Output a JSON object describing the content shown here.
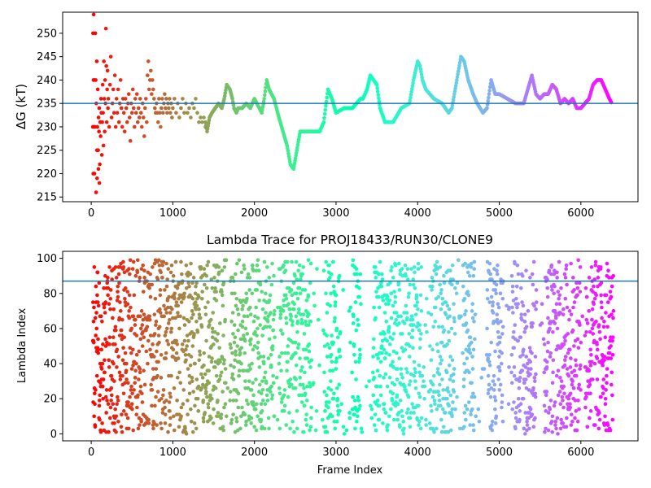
{
  "chart_data": [
    {
      "type": "scatter",
      "title": "",
      "xlabel": "",
      "ylabel": "ΔG (kT)",
      "xlim": [
        -350,
        6700
      ],
      "ylim": [
        214,
        254.5
      ],
      "xticks": [
        0,
        1000,
        2000,
        3000,
        4000,
        5000,
        6000
      ],
      "yticks": [
        215,
        220,
        225,
        230,
        235,
        240,
        245,
        250
      ],
      "hline": 235,
      "hline_color": "#1f77b4",
      "colormap": "rainbow (reversed along frame index)",
      "scatter_points": [
        [
          20,
          230
        ],
        [
          22,
          250
        ],
        [
          25,
          220
        ],
        [
          28,
          240
        ],
        [
          30,
          254
        ],
        [
          35,
          230
        ],
        [
          38,
          240
        ],
        [
          40,
          220
        ],
        [
          45,
          230
        ],
        [
          50,
          250
        ],
        [
          55,
          240
        ],
        [
          60,
          216
        ],
        [
          62,
          235
        ],
        [
          68,
          244
        ],
        [
          70,
          225
        ],
        [
          72,
          219
        ],
        [
          75,
          230
        ],
        [
          80,
          238
        ],
        [
          85,
          225
        ],
        [
          88,
          221
        ],
        [
          90,
          232
        ],
        [
          95,
          229
        ],
        [
          98,
          234
        ],
        [
          100,
          218
        ],
        [
          105,
          222
        ],
        [
          110,
          231
        ],
        [
          115,
          228
        ],
        [
          120,
          236
        ],
        [
          125,
          233
        ],
        [
          130,
          224
        ],
        [
          135,
          231
        ],
        [
          140,
          239
        ],
        [
          145,
          233
        ],
        [
          150,
          226
        ],
        [
          155,
          244
        ],
        [
          160,
          236
        ],
        [
          165,
          229
        ],
        [
          170,
          240
        ],
        [
          175,
          235
        ],
        [
          180,
          251
        ],
        [
          185,
          243
        ],
        [
          190,
          231
        ],
        [
          195,
          238
        ],
        [
          200,
          242
        ],
        [
          205,
          234
        ],
        [
          210,
          236
        ],
        [
          220,
          230
        ],
        [
          230,
          239
        ],
        [
          240,
          245
        ],
        [
          250,
          232
        ],
        [
          260,
          235
        ],
        [
          270,
          238
        ],
        [
          280,
          233
        ],
        [
          290,
          241
        ],
        [
          300,
          230
        ],
        [
          310,
          236
        ],
        [
          320,
          233
        ],
        [
          330,
          238
        ],
        [
          340,
          231
        ],
        [
          350,
          235
        ],
        [
          360,
          240
        ],
        [
          370,
          234
        ],
        [
          380,
          230
        ],
        [
          390,
          236
        ],
        [
          400,
          233
        ],
        [
          410,
          229
        ],
        [
          420,
          236
        ],
        [
          430,
          234
        ],
        [
          440,
          231
        ],
        [
          450,
          235
        ],
        [
          460,
          237
        ],
        [
          470,
          232
        ],
        [
          480,
          227
        ],
        [
          490,
          235
        ],
        [
          500,
          233
        ],
        [
          510,
          238
        ],
        [
          520,
          234
        ],
        [
          530,
          230
        ],
        [
          540,
          236
        ],
        [
          550,
          233
        ],
        [
          560,
          237
        ],
        [
          570,
          231
        ],
        [
          580,
          234
        ],
        [
          590,
          232
        ],
        [
          600,
          236
        ],
        [
          610,
          233
        ],
        [
          620,
          230
        ],
        [
          630,
          235
        ],
        [
          640,
          232
        ],
        [
          650,
          228
        ],
        [
          660,
          234
        ],
        [
          670,
          236
        ],
        [
          680,
          231
        ],
        [
          690,
          241
        ],
        [
          700,
          244
        ],
        [
          710,
          238
        ],
        [
          720,
          240
        ],
        [
          730,
          242
        ],
        [
          740,
          237
        ],
        [
          750,
          240
        ],
        [
          760,
          238
        ],
        [
          770,
          236
        ],
        [
          780,
          234
        ],
        [
          790,
          233
        ],
        [
          800,
          235
        ],
        [
          810,
          233
        ],
        [
          820,
          231
        ],
        [
          830,
          236
        ],
        [
          840,
          233
        ],
        [
          850,
          230
        ],
        [
          860,
          234
        ],
        [
          870,
          236
        ],
        [
          880,
          233
        ],
        [
          890,
          235
        ],
        [
          900,
          237
        ],
        [
          910,
          234
        ],
        [
          920,
          236
        ],
        [
          930,
          233
        ],
        [
          940,
          235
        ],
        [
          950,
          234
        ],
        [
          960,
          236
        ],
        [
          970,
          233
        ],
        [
          980,
          235
        ],
        [
          990,
          232
        ],
        [
          1000,
          234
        ],
        [
          1020,
          236
        ],
        [
          1040,
          233
        ],
        [
          1060,
          235
        ],
        [
          1080,
          232
        ],
        [
          1100,
          234
        ],
        [
          1120,
          236
        ],
        [
          1140,
          233
        ],
        [
          1160,
          235
        ],
        [
          1180,
          233
        ],
        [
          1200,
          234
        ],
        [
          1220,
          232
        ],
        [
          1240,
          235
        ],
        [
          1260,
          234
        ],
        [
          1280,
          236
        ],
        [
          1300,
          233
        ],
        [
          1320,
          231
        ],
        [
          1340,
          232
        ],
        [
          1360,
          231
        ],
        [
          1380,
          232
        ],
        [
          1400,
          230
        ]
      ],
      "trace_points": [
        [
          1400,
          231
        ],
        [
          1420,
          229
        ],
        [
          1450,
          232
        ],
        [
          1480,
          233
        ],
        [
          1520,
          234
        ],
        [
          1560,
          235
        ],
        [
          1600,
          234
        ],
        [
          1630,
          236
        ],
        [
          1660,
          239
        ],
        [
          1700,
          238
        ],
        [
          1730,
          236
        ],
        [
          1750,
          234
        ],
        [
          1780,
          233
        ],
        [
          1800,
          234
        ],
        [
          1850,
          234
        ],
        [
          1900,
          235
        ],
        [
          1950,
          234
        ],
        [
          2000,
          236
        ],
        [
          2030,
          235
        ],
        [
          2060,
          234
        ],
        [
          2090,
          233
        ],
        [
          2120,
          236
        ],
        [
          2150,
          240
        ],
        [
          2180,
          238
        ],
        [
          2210,
          237
        ],
        [
          2240,
          236
        ],
        [
          2270,
          234
        ],
        [
          2300,
          232
        ],
        [
          2350,
          229
        ],
        [
          2400,
          226
        ],
        [
          2440,
          222
        ],
        [
          2480,
          221
        ],
        [
          2520,
          225
        ],
        [
          2560,
          229
        ],
        [
          2600,
          229
        ],
        [
          2700,
          229
        ],
        [
          2800,
          229
        ],
        [
          2850,
          231
        ],
        [
          2900,
          238
        ],
        [
          2950,
          236
        ],
        [
          3000,
          233
        ],
        [
          3100,
          234
        ],
        [
          3200,
          234
        ],
        [
          3300,
          236
        ],
        [
          3330,
          236
        ],
        [
          3380,
          238
        ],
        [
          3420,
          241
        ],
        [
          3460,
          240
        ],
        [
          3500,
          239
        ],
        [
          3540,
          234
        ],
        [
          3600,
          231
        ],
        [
          3700,
          231
        ],
        [
          3800,
          234
        ],
        [
          3900,
          235
        ],
        [
          3950,
          240
        ],
        [
          4000,
          244
        ],
        [
          4030,
          243
        ],
        [
          4060,
          240
        ],
        [
          4100,
          238
        ],
        [
          4200,
          236
        ],
        [
          4300,
          235
        ],
        [
          4380,
          233
        ],
        [
          4420,
          234
        ],
        [
          4480,
          240
        ],
        [
          4530,
          245
        ],
        [
          4570,
          244
        ],
        [
          4620,
          240
        ],
        [
          4680,
          237
        ],
        [
          4730,
          235
        ],
        [
          4800,
          233
        ],
        [
          4850,
          234
        ],
        [
          4900,
          240
        ],
        [
          4950,
          237
        ],
        [
          5000,
          237
        ],
        [
          5100,
          236
        ],
        [
          5200,
          235
        ],
        [
          5300,
          235
        ],
        [
          5350,
          238
        ],
        [
          5400,
          241
        ],
        [
          5450,
          237
        ],
        [
          5500,
          236
        ],
        [
          5550,
          237
        ],
        [
          5600,
          237
        ],
        [
          5650,
          239
        ],
        [
          5700,
          238
        ],
        [
          5750,
          235
        ],
        [
          5800,
          236
        ],
        [
          5850,
          235
        ],
        [
          5900,
          236
        ],
        [
          5950,
          234
        ],
        [
          6000,
          234
        ],
        [
          6050,
          235
        ],
        [
          6100,
          236
        ],
        [
          6150,
          239
        ],
        [
          6200,
          240
        ],
        [
          6250,
          240
        ],
        [
          6300,
          238
        ],
        [
          6350,
          236
        ],
        [
          6380,
          235
        ]
      ]
    },
    {
      "type": "scatter",
      "title": "Lambda Trace for PROJ18433/RUN30/CLONE9",
      "xlabel": "Frame Index",
      "ylabel": "Lambda Index",
      "xlim": [
        -350,
        6700
      ],
      "ylim": [
        -4,
        104
      ],
      "xticks": [
        0,
        1000,
        2000,
        3000,
        4000,
        5000,
        6000
      ],
      "yticks": [
        0,
        20,
        40,
        60,
        80,
        100
      ],
      "hline": 87,
      "hline_color": "#1f77b4",
      "colormap": "rainbow (reversed along frame index)",
      "frame_range": [
        0,
        6400
      ],
      "lambda_range": [
        0,
        99
      ],
      "points_shown": "approx. one lambda value per frame, spread over the full lambda range"
    }
  ]
}
